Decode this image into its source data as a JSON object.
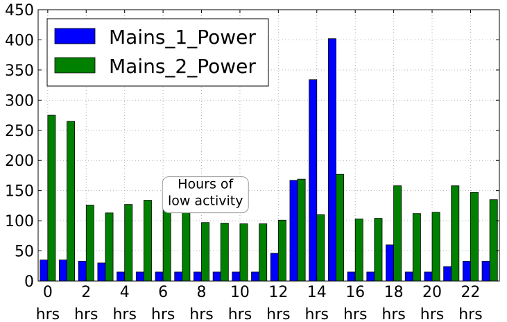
{
  "chart_data": {
    "type": "bar",
    "title": "",
    "xlabel": "",
    "ylabel": "",
    "categories": [
      "0",
      "1",
      "2",
      "3",
      "4",
      "5",
      "6",
      "7",
      "8",
      "9",
      "10",
      "11",
      "12",
      "13",
      "14",
      "15",
      "16",
      "17",
      "18",
      "19",
      "20",
      "21",
      "22",
      "23"
    ],
    "x_tick_labels": [
      {
        "at": 0,
        "line1": "0",
        "line2": "hrs"
      },
      {
        "at": 2,
        "line1": "2",
        "line2": "hrs"
      },
      {
        "at": 4,
        "line1": "4",
        "line2": "hrs"
      },
      {
        "at": 6,
        "line1": "6",
        "line2": "hrs"
      },
      {
        "at": 8,
        "line1": "8",
        "line2": "hrs"
      },
      {
        "at": 10,
        "line1": "10",
        "line2": "hrs"
      },
      {
        "at": 12,
        "line1": "12",
        "line2": "hrs"
      },
      {
        "at": 14,
        "line1": "14",
        "line2": "hrs"
      },
      {
        "at": 16,
        "line1": "16",
        "line2": "hrs"
      },
      {
        "at": 18,
        "line1": "18",
        "line2": "hrs"
      },
      {
        "at": 20,
        "line1": "20",
        "line2": "hrs"
      },
      {
        "at": 22,
        "line1": "22",
        "line2": "hrs"
      }
    ],
    "y_ticks": [
      "0",
      "50",
      "100",
      "150",
      "200",
      "250",
      "300",
      "350",
      "400",
      "450"
    ],
    "ylim": [
      0,
      450
    ],
    "grid": true,
    "legend_position": "top-left",
    "series": [
      {
        "name": "Mains_1_Power",
        "color": "#0000ff",
        "values": [
          35,
          35,
          33,
          30,
          15,
          15,
          15,
          15,
          15,
          15,
          15,
          15,
          46,
          167,
          334,
          402,
          15,
          15,
          60,
          15,
          15,
          24,
          33,
          33
        ]
      },
      {
        "name": "Mains_2_Power",
        "color": "#008000",
        "values": [
          275,
          265,
          126,
          113,
          127,
          134,
          133,
          114,
          97,
          96,
          95,
          95,
          101,
          169,
          110,
          177,
          103,
          104,
          158,
          112,
          114,
          158,
          147,
          135
        ]
      }
    ],
    "annotation": {
      "lines": [
        "Hours of",
        "low activity"
      ],
      "at_x": 9,
      "at_y": 150
    }
  }
}
